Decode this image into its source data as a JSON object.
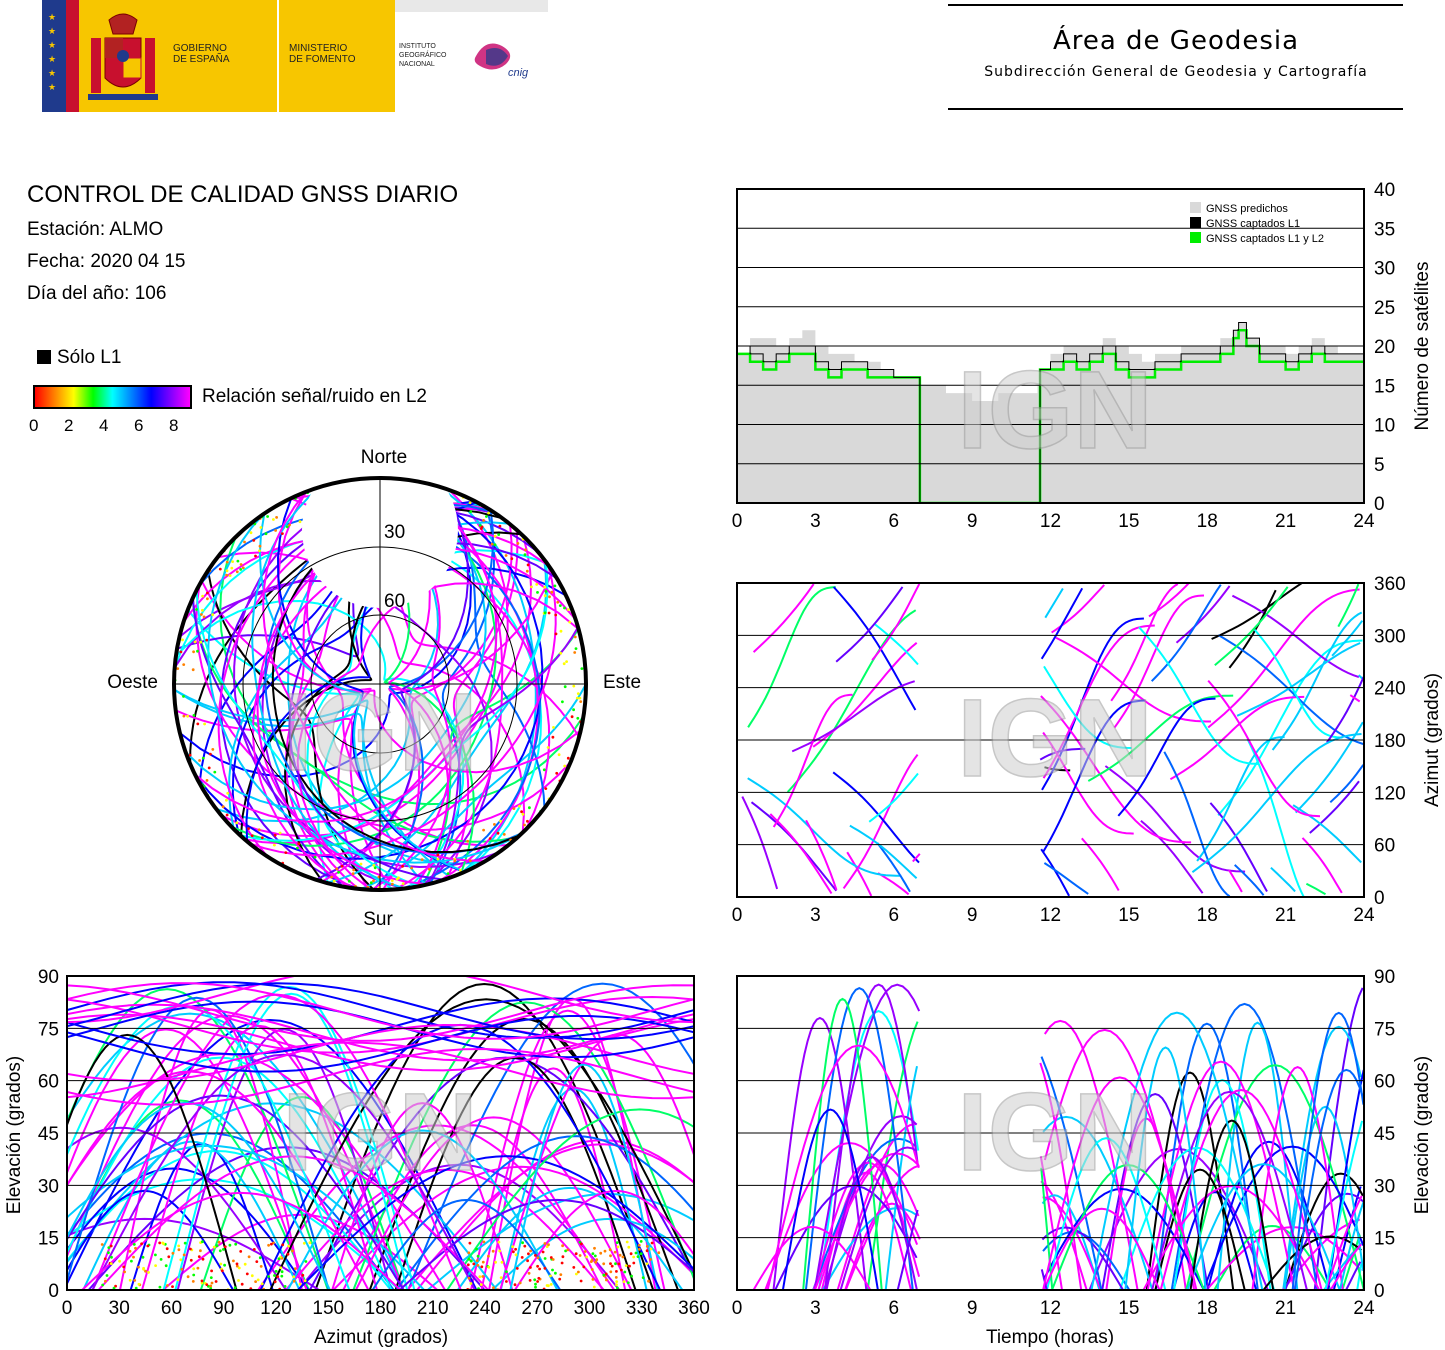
{
  "header": {
    "logo_gov_line1": "GOBIERNO",
    "logo_gov_line2": "DE ESPAÑA",
    "logo_min_line1": "MINISTERIO",
    "logo_min_line2": "DE FOMENTO",
    "logo_inst_line1": "INSTITUTO",
    "logo_inst_line2": "GEOGRÁFICO",
    "logo_inst_line3": "NACIONAL",
    "logo_cnig": "cnig",
    "area_title": "Área de Geodesia",
    "area_subtitle": "Subdirección General de Geodesia y Cartografía"
  },
  "info": {
    "title": "CONTROL DE CALIDAD GNSS DIARIO",
    "station": "Estación: ALMO",
    "date": "Fecha: 2020 04 15",
    "doy": "Día del año: 106"
  },
  "legend": {
    "l1_only": "Sólo L1",
    "snr_label": "Relación señal/ruido en L2",
    "snr_ticks": [
      "0",
      "2",
      "4",
      "6",
      "8"
    ]
  },
  "watermark": "IGN",
  "colors": {
    "l1_only": "#000000",
    "predicted": "#d9d9d9",
    "l1l2": "#00ee00",
    "snr_scale": [
      "#ff0000",
      "#ff8000",
      "#ffff00",
      "#00ff00",
      "#00ffff",
      "#0080ff",
      "#0000ff",
      "#8000ff",
      "#ff00ff"
    ]
  },
  "chart_data": [
    {
      "id": "skyplot",
      "type": "scatter",
      "directions": {
        "north": "Norte",
        "south": "Sur",
        "east": "Este",
        "west": "Oeste"
      },
      "ring_labels": [
        "30",
        "60"
      ],
      "rings_elevation_deg": [
        30,
        60
      ]
    },
    {
      "id": "satellites",
      "type": "area",
      "x_ticks": [
        "0",
        "3",
        "6",
        "9",
        "12",
        "15",
        "18",
        "21",
        "24"
      ],
      "y_ticks": [
        "0",
        "5",
        "10",
        "15",
        "20",
        "25",
        "30",
        "35",
        "40"
      ],
      "xlim": [
        0,
        24
      ],
      "ylim": [
        0,
        40
      ],
      "ylabel": "Número de satélites",
      "legend": [
        "GNSS predichos",
        "GNSS captados L1",
        "GNSS captados L1 y L2"
      ],
      "legend_position": "top-right",
      "x": [
        0,
        0.5,
        1,
        1.5,
        2,
        2.5,
        3,
        3.5,
        4,
        4.5,
        5,
        5.5,
        6,
        6.5,
        6.9,
        7,
        8,
        9,
        10,
        11,
        11.5,
        11.6,
        12,
        12.5,
        13,
        13.5,
        14,
        14.5,
        15,
        15.5,
        16,
        16.5,
        17,
        17.5,
        18,
        18.5,
        19,
        19.2,
        19.5,
        20,
        20.5,
        21,
        21.5,
        22,
        22.5,
        23,
        23.5,
        24
      ],
      "predicted": [
        19,
        21,
        21,
        20,
        21,
        22,
        20,
        19,
        19,
        18,
        18,
        17,
        16,
        16,
        16,
        15,
        14,
        13,
        14,
        14,
        15,
        17,
        19,
        20,
        20,
        20,
        21,
        20,
        19,
        18,
        19,
        19,
        20,
        20,
        20,
        21,
        22,
        23,
        21,
        20,
        20,
        19,
        20,
        21,
        20,
        19,
        19,
        19
      ],
      "l1": [
        20,
        19,
        18,
        19,
        20,
        20,
        18,
        17,
        18,
        18,
        17,
        17,
        16,
        16,
        16,
        0,
        0,
        0,
        0,
        0,
        0,
        17,
        18,
        19,
        18,
        19,
        20,
        18,
        17,
        17,
        18,
        18,
        19,
        19,
        19,
        20,
        22,
        23,
        21,
        19,
        19,
        18,
        19,
        20,
        19,
        19,
        19,
        19
      ],
      "l1l2": [
        19,
        18,
        17,
        18,
        19,
        19,
        17,
        16,
        17,
        17,
        16,
        16,
        16,
        16,
        16,
        0,
        0,
        0,
        0,
        0,
        0,
        17,
        17,
        18,
        17,
        18,
        19,
        17,
        16,
        16,
        17,
        17,
        18,
        18,
        18,
        19,
        21,
        22,
        20,
        18,
        18,
        17,
        18,
        19,
        18,
        18,
        18,
        18
      ]
    },
    {
      "id": "azimuth_time",
      "type": "scatter",
      "x_ticks": [
        "0",
        "3",
        "6",
        "9",
        "12",
        "15",
        "18",
        "21",
        "24"
      ],
      "y_ticks": [
        "0",
        "60",
        "120",
        "180",
        "240",
        "300",
        "360"
      ],
      "xlim": [
        0,
        24
      ],
      "ylim": [
        0,
        360
      ],
      "ylabel": "Azimut (grados)"
    },
    {
      "id": "elev_azimuth",
      "type": "scatter",
      "x_ticks": [
        "0",
        "30",
        "60",
        "90",
        "120",
        "150",
        "180",
        "210",
        "240",
        "270",
        "300",
        "330",
        "360"
      ],
      "y_ticks": [
        "0",
        "15",
        "30",
        "45",
        "60",
        "75",
        "90"
      ],
      "xlim": [
        0,
        360
      ],
      "ylim": [
        0,
        90
      ],
      "xlabel": "Azimut (grados)",
      "ylabel": "Elevación (grados)"
    },
    {
      "id": "elev_time",
      "type": "scatter",
      "x_ticks": [
        "0",
        "3",
        "6",
        "9",
        "12",
        "15",
        "18",
        "21",
        "24"
      ],
      "y_ticks": [
        "0",
        "15",
        "30",
        "45",
        "60",
        "75",
        "90"
      ],
      "xlim": [
        0,
        24
      ],
      "ylim": [
        0,
        90
      ],
      "xlabel": "Tiempo (horas)",
      "ylabel": "Elevación (grados)"
    }
  ]
}
